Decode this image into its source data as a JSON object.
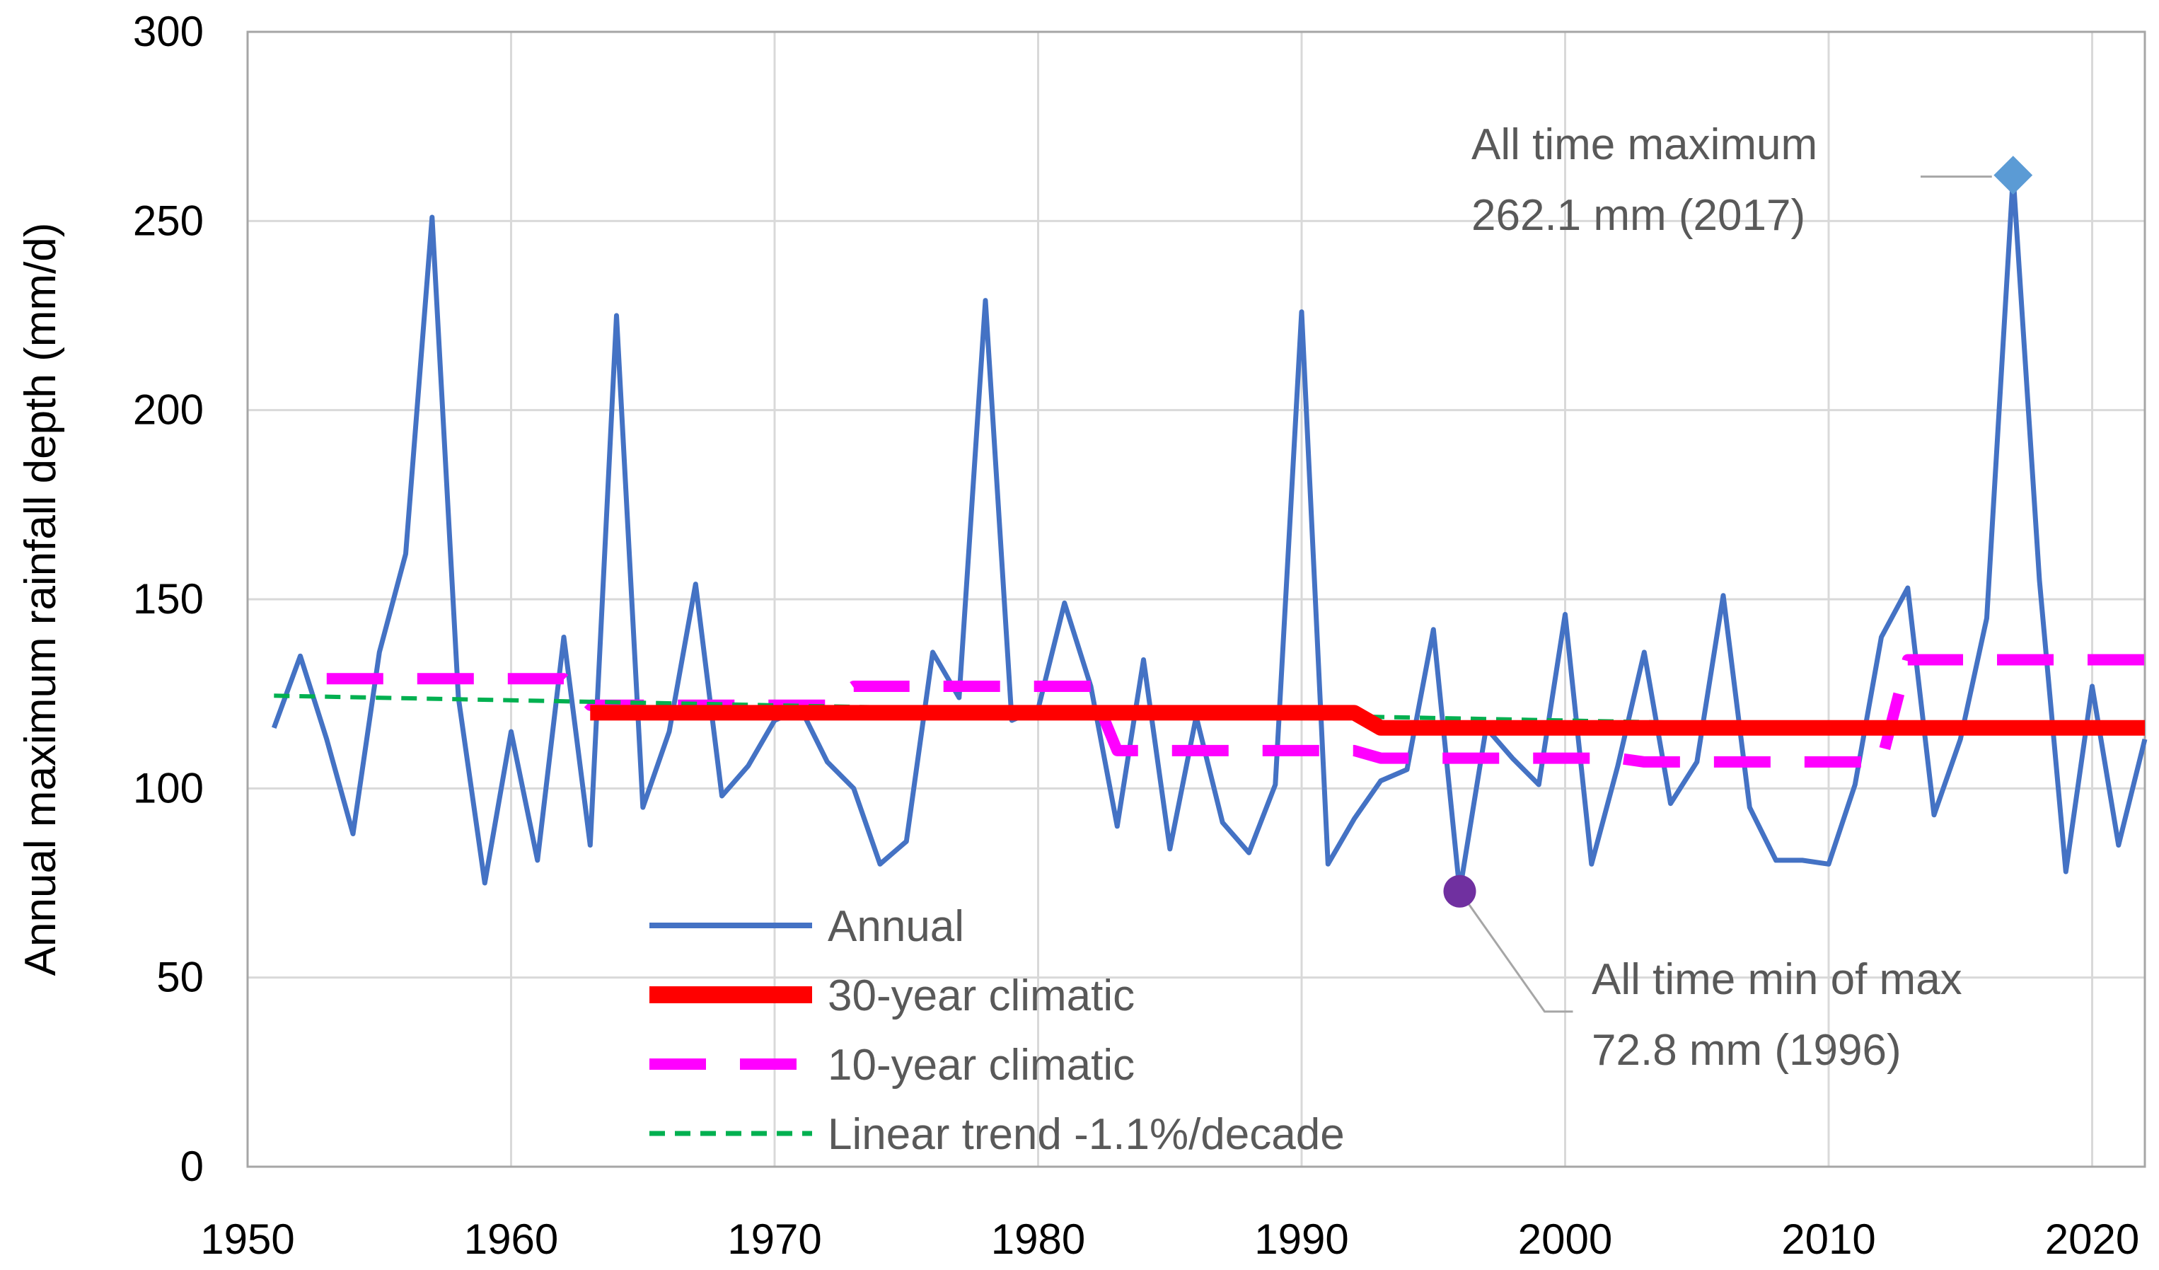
{
  "chart_data": {
    "type": "line",
    "title": "",
    "xlabel": "",
    "ylabel": "Annual maximum  rainfall depth (mm/d)",
    "xlim": [
      1950,
      2022
    ],
    "ylim": [
      0,
      300
    ],
    "xticks": [
      1950,
      1960,
      1970,
      1980,
      1990,
      2000,
      2010,
      2020
    ],
    "yticks": [
      0,
      50,
      100,
      150,
      200,
      250,
      300
    ],
    "grid": true,
    "legend_position": "bottom-center",
    "series": [
      {
        "name": "Annual",
        "color": "#4472C4",
        "style": "solid",
        "x": [
          1951,
          1952,
          1953,
          1954,
          1955,
          1956,
          1957,
          1958,
          1959,
          1960,
          1961,
          1962,
          1963,
          1964,
          1965,
          1966,
          1967,
          1968,
          1969,
          1970,
          1971,
          1972,
          1973,
          1974,
          1975,
          1976,
          1977,
          1978,
          1979,
          1980,
          1981,
          1982,
          1983,
          1984,
          1985,
          1986,
          1987,
          1988,
          1989,
          1990,
          1991,
          1992,
          1993,
          1994,
          1995,
          1996,
          1997,
          1998,
          1999,
          2000,
          2001,
          2002,
          2003,
          2004,
          2005,
          2006,
          2007,
          2008,
          2009,
          2010,
          2011,
          2012,
          2013,
          2014,
          2015,
          2016,
          2017,
          2018,
          2019,
          2020,
          2021,
          2022
        ],
        "values": [
          116,
          135,
          113,
          88,
          136,
          162,
          251,
          124,
          75,
          115,
          81,
          140,
          85,
          225,
          95,
          115,
          154,
          98,
          106,
          118,
          121,
          107,
          100,
          80,
          86,
          136,
          124,
          229,
          118,
          121,
          149,
          127,
          90,
          134,
          84,
          119,
          91,
          83,
          101,
          226,
          80,
          92,
          102,
          105,
          142,
          72.8,
          116,
          108,
          101,
          146,
          80,
          106,
          136,
          96,
          107,
          151,
          95,
          81,
          81,
          80,
          101,
          140,
          153,
          93,
          113,
          145,
          262.1,
          155,
          78,
          127,
          85,
          113
        ]
      },
      {
        "name": "30-year climatic",
        "color": "#FF0000",
        "style": "thick",
        "x": [
          1963,
          1992,
          1993,
          2022
        ],
        "values": [
          120,
          120,
          116,
          116
        ]
      },
      {
        "name": "10-year climatic",
        "color": "#FF00FF",
        "style": "dashed",
        "x": [
          1953,
          1962,
          1963,
          1972,
          1973,
          1982,
          1983,
          1992,
          1993,
          2002,
          2003,
          2012,
          2013,
          2022
        ],
        "values": [
          129,
          129,
          122,
          122,
          127,
          127,
          110,
          110,
          108,
          108,
          107,
          107,
          134,
          134
        ]
      },
      {
        "name": "Linear trend -1.1%/decade",
        "color": "#00B050",
        "style": "dotted",
        "x": [
          1951,
          2022
        ],
        "values": [
          124.5,
          115
        ]
      }
    ],
    "markers": [
      {
        "name": "max-marker",
        "x": 2017,
        "y": 262.1,
        "shape": "diamond",
        "color": "#5B9BD5"
      },
      {
        "name": "min-marker",
        "x": 1996,
        "y": 72.8,
        "shape": "circle",
        "color": "#7030A0"
      }
    ],
    "annotations": [
      {
        "line1": "All time maximum",
        "line2": "262.1 mm (2017)"
      },
      {
        "line1": "All time min of max",
        "line2": "72.8 mm (1996)"
      }
    ]
  }
}
